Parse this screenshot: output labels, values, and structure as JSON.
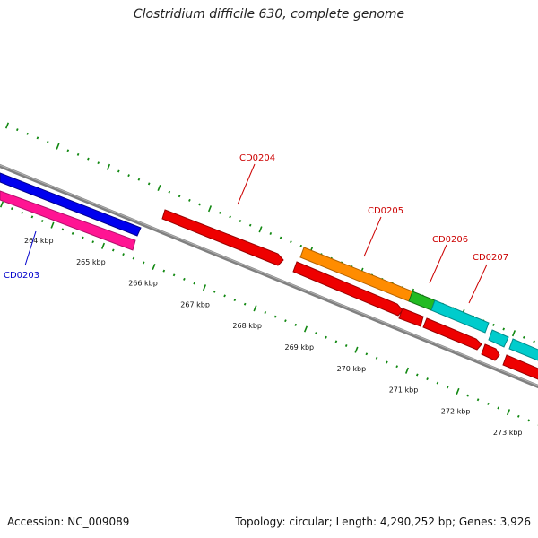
{
  "title": "Clostridium difficile 630, complete genome",
  "footer": {
    "accession": "Accession: NC_009089",
    "summary": "Topology: circular; Length: 4,290,252 bp; Genes: 3,926"
  },
  "scale_labels": [
    "264 kbp",
    "265 kbp",
    "266 kbp",
    "267 kbp",
    "268 kbp",
    "269 kbp",
    "270 kbp",
    "271 kbp",
    "272 kbp",
    "273 kbp"
  ],
  "gene_labels": [
    {
      "name": "CD0203",
      "color": "#0000cc"
    },
    {
      "name": "CD0204",
      "color": "#cc0000"
    },
    {
      "name": "CD0205",
      "color": "#cc0000"
    },
    {
      "name": "CD0206",
      "color": "#cc0000"
    },
    {
      "name": "CD0207",
      "color": "#cc0000"
    }
  ],
  "feature_colors": {
    "blue": "#0000ee",
    "pink": "#ff1493",
    "red": "#ee0000",
    "orange": "#ff8c00",
    "green": "#22bb22",
    "cyan": "#00cccc",
    "backbone": "#808080",
    "ticks": "#118811"
  }
}
